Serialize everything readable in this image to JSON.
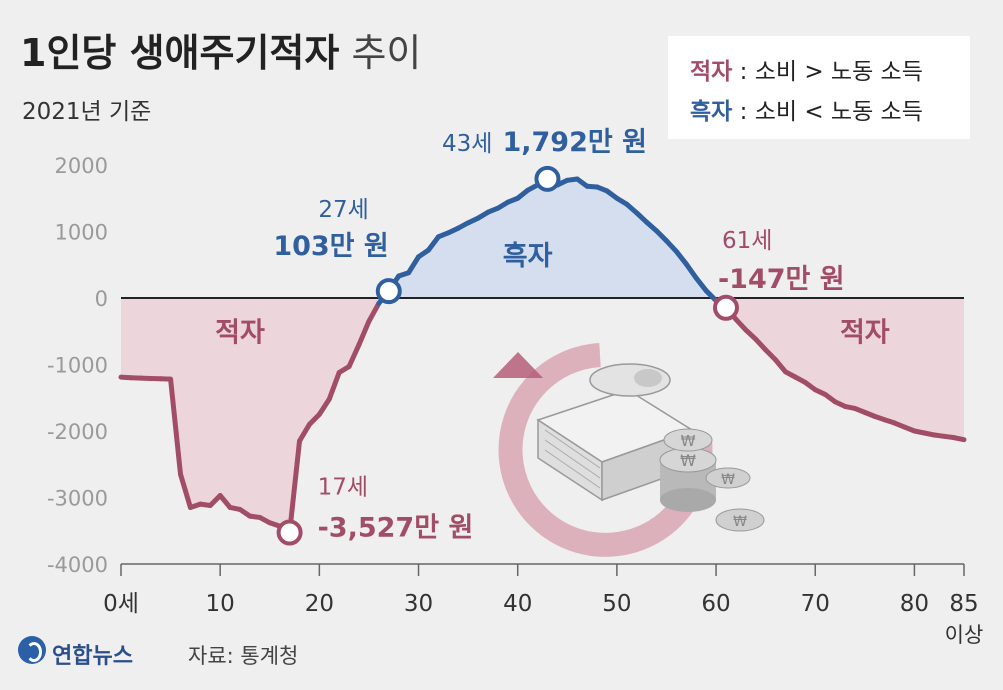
{
  "title_bold": "1인당 생애주기적자",
  "title_light": "추이",
  "subtitle": "2021년 기준",
  "legend": {
    "deficit_key": "적자",
    "deficit_rest": " : 소비 > 노동 소득",
    "surplus_key": "흑자",
    "surplus_rest": " : 소비 < 노동 소득"
  },
  "colors": {
    "deficit": "#a24d67",
    "surplus": "#2f5f9e",
    "deficit_fill": "#ecd6db",
    "surplus_fill": "#d5deee"
  },
  "chart_data": {
    "type": "area",
    "x_ticks": [
      "0세",
      "10",
      "20",
      "30",
      "40",
      "50",
      "60",
      "70",
      "80",
      "85"
    ],
    "x_tick_values": [
      0,
      10,
      20,
      30,
      40,
      50,
      60,
      70,
      80,
      85
    ],
    "x_last_sublabel": "이상",
    "y_ticks": [
      "2000",
      "1000",
      "0",
      "-1000",
      "-2000",
      "-3000",
      "-4000"
    ],
    "y_tick_values": [
      2000,
      1000,
      0,
      -1000,
      -2000,
      -3000,
      -4000
    ],
    "xlim": [
      0,
      85
    ],
    "ylim": [
      -4000,
      2000
    ],
    "series": [
      {
        "values": [
          [
            0,
            -1190
          ],
          [
            1,
            -1200
          ],
          [
            2,
            -1205
          ],
          [
            3,
            -1210
          ],
          [
            4,
            -1215
          ],
          [
            5,
            -1220
          ],
          [
            6,
            -2650
          ],
          [
            7,
            -3150
          ],
          [
            8,
            -3100
          ],
          [
            9,
            -3120
          ],
          [
            10,
            -2970
          ],
          [
            11,
            -3150
          ],
          [
            12,
            -3180
          ],
          [
            13,
            -3280
          ],
          [
            14,
            -3300
          ],
          [
            15,
            -3380
          ],
          [
            16,
            -3430
          ],
          [
            17,
            -3527
          ],
          [
            18,
            -2150
          ],
          [
            19,
            -1900
          ],
          [
            20,
            -1750
          ],
          [
            21,
            -1520
          ],
          [
            22,
            -1120
          ],
          [
            23,
            -1030
          ],
          [
            24,
            -700
          ],
          [
            25,
            -350
          ],
          [
            26,
            -80
          ],
          [
            27,
            103
          ],
          [
            28,
            330
          ],
          [
            29,
            380
          ],
          [
            30,
            620
          ],
          [
            31,
            720
          ],
          [
            32,
            920
          ],
          [
            33,
            980
          ],
          [
            34,
            1050
          ],
          [
            35,
            1130
          ],
          [
            36,
            1200
          ],
          [
            37,
            1290
          ],
          [
            38,
            1350
          ],
          [
            39,
            1440
          ],
          [
            40,
            1500
          ],
          [
            41,
            1620
          ],
          [
            42,
            1700
          ],
          [
            43,
            1792
          ],
          [
            44,
            1700
          ],
          [
            45,
            1770
          ],
          [
            46,
            1790
          ],
          [
            47,
            1680
          ],
          [
            48,
            1670
          ],
          [
            49,
            1610
          ],
          [
            50,
            1500
          ],
          [
            51,
            1410
          ],
          [
            52,
            1280
          ],
          [
            53,
            1140
          ],
          [
            54,
            1010
          ],
          [
            55,
            860
          ],
          [
            56,
            700
          ],
          [
            57,
            510
          ],
          [
            58,
            300
          ],
          [
            59,
            110
          ],
          [
            60,
            -40
          ],
          [
            61,
            -147
          ],
          [
            62,
            -320
          ],
          [
            63,
            -480
          ],
          [
            64,
            -620
          ],
          [
            65,
            -780
          ],
          [
            66,
            -930
          ],
          [
            67,
            -1110
          ],
          [
            68,
            -1190
          ],
          [
            69,
            -1270
          ],
          [
            70,
            -1380
          ],
          [
            71,
            -1450
          ],
          [
            72,
            -1560
          ],
          [
            73,
            -1630
          ],
          [
            74,
            -1660
          ],
          [
            75,
            -1720
          ],
          [
            76,
            -1780
          ],
          [
            77,
            -1830
          ],
          [
            78,
            -1880
          ],
          [
            79,
            -1940
          ],
          [
            80,
            -2000
          ],
          [
            81,
            -2030
          ],
          [
            82,
            -2060
          ],
          [
            83,
            -2080
          ],
          [
            84,
            -2100
          ],
          [
            85,
            -2130
          ]
        ]
      }
    ],
    "region_labels": [
      {
        "x": 12,
        "y": -500,
        "text": "적자",
        "kind": "deficit"
      },
      {
        "x": 41,
        "y": 650,
        "text": "흑자",
        "kind": "surplus"
      },
      {
        "x": 75,
        "y": -500,
        "text": "적자",
        "kind": "deficit"
      }
    ],
    "annotations": [
      {
        "x": 17,
        "y": -3527,
        "age": "17세",
        "value": "-3,527만 원",
        "kind": "deficit"
      },
      {
        "x": 27,
        "y": 103,
        "age": "27세",
        "value": "103만 원",
        "kind": "surplus"
      },
      {
        "x": 43,
        "y": 1792,
        "age": "43세",
        "value": "1,792만 원",
        "kind": "surplus"
      },
      {
        "x": 61,
        "y": -147,
        "age": "61세",
        "value": "-147만 원",
        "kind": "deficit"
      }
    ]
  },
  "footer": {
    "brand": "연합뉴스",
    "source": "자료: 통계청"
  }
}
